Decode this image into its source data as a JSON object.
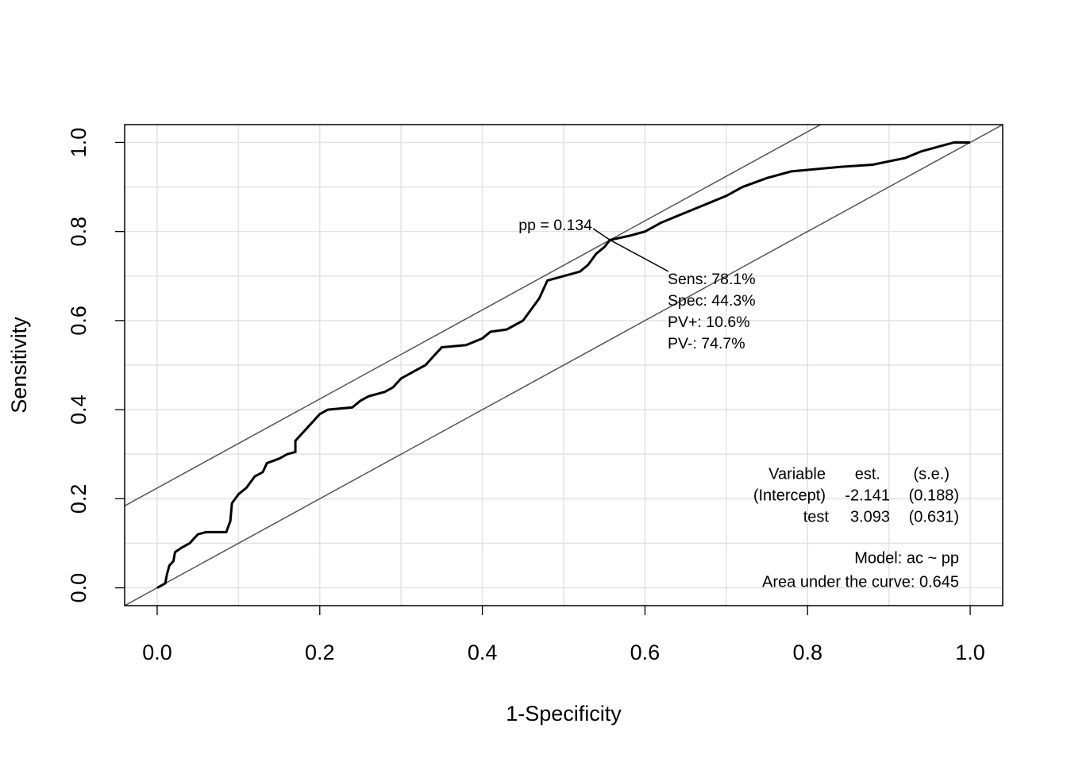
{
  "chart_data": {
    "type": "line",
    "xlabel": "1-Specificity",
    "ylabel": "Sensitivity",
    "xlim": [
      -0.04,
      1.04
    ],
    "ylim": [
      -0.04,
      1.04
    ],
    "xticks": [
      {
        "value": 0,
        "label": "0.0"
      },
      {
        "value": 0.2,
        "label": "0.2"
      },
      {
        "value": 0.4,
        "label": "0.4"
      },
      {
        "value": 0.6,
        "label": "0.6"
      },
      {
        "value": 0.8,
        "label": "0.8"
      },
      {
        "value": 1,
        "label": "1.0"
      }
    ],
    "yticks": [
      {
        "value": 0,
        "label": "0.0"
      },
      {
        "value": 0.2,
        "label": "0.2"
      },
      {
        "value": 0.4,
        "label": "0.4"
      },
      {
        "value": 0.6,
        "label": "0.6"
      },
      {
        "value": 0.8,
        "label": "0.8"
      },
      {
        "value": 1,
        "label": "1.0"
      }
    ],
    "grid": true,
    "grid_values": [
      0,
      0.1,
      0.2,
      0.3,
      0.4,
      0.5,
      0.6,
      0.7,
      0.8,
      0.9,
      1
    ],
    "series": [
      {
        "color": "#000000",
        "x": [
          0,
          0.01,
          0.012,
          0.015,
          0.02,
          0.022,
          0.03,
          0.04,
          0.05,
          0.06,
          0.085,
          0.09,
          0.092,
          0.1,
          0.11,
          0.12,
          0.13,
          0.135,
          0.15,
          0.16,
          0.17,
          0.17,
          0.18,
          0.19,
          0.2,
          0.21,
          0.24,
          0.25,
          0.26,
          0.28,
          0.29,
          0.3,
          0.31,
          0.32,
          0.33,
          0.34,
          0.35,
          0.38,
          0.4,
          0.41,
          0.43,
          0.44,
          0.45,
          0.46,
          0.47,
          0.48,
          0.5,
          0.52,
          0.53,
          0.54,
          0.55,
          0.557,
          0.58,
          0.6,
          0.62,
          0.64,
          0.66,
          0.68,
          0.7,
          0.72,
          0.75,
          0.78,
          0.84,
          0.88,
          0.92,
          0.94,
          0.96,
          0.98,
          1
        ],
        "values": [
          0,
          0.01,
          0.03,
          0.05,
          0.06,
          0.08,
          0.09,
          0.1,
          0.12,
          0.125,
          0.125,
          0.15,
          0.19,
          0.21,
          0.225,
          0.25,
          0.26,
          0.28,
          0.29,
          0.3,
          0.305,
          0.33,
          0.35,
          0.37,
          0.39,
          0.4,
          0.405,
          0.42,
          0.43,
          0.44,
          0.45,
          0.47,
          0.48,
          0.49,
          0.5,
          0.52,
          0.54,
          0.545,
          0.56,
          0.575,
          0.58,
          0.59,
          0.6,
          0.625,
          0.65,
          0.69,
          0.7,
          0.71,
          0.725,
          0.75,
          0.765,
          0.781,
          0.79,
          0.8,
          0.82,
          0.835,
          0.85,
          0.865,
          0.88,
          0.9,
          0.92,
          0.935,
          0.945,
          0.95,
          0.965,
          0.98,
          0.99,
          1,
          1
        ]
      }
    ],
    "reference_lines": [
      {
        "slope": 1,
        "intercept": 0,
        "color": "#555555"
      },
      {
        "slope": 1,
        "intercept": 0.224,
        "color": "#555555"
      }
    ],
    "optimal_point": {
      "x": 0.557,
      "y": 0.781,
      "label": "pp = 0.134",
      "stats": [
        "Sens: 78.1%",
        "Spec: 44.3%",
        "PV+: 10.6%",
        "PV-: 74.7%"
      ]
    },
    "table": {
      "header": [
        "Variable",
        "est.",
        "(s.e.)"
      ],
      "rows": [
        [
          "(Intercept)",
          "-2.141",
          "(0.188)"
        ],
        [
          "test",
          "3.093",
          "(0.631)"
        ]
      ]
    },
    "model": "Model:  ac ~ pp",
    "auc": "Area under the curve: 0.645"
  }
}
